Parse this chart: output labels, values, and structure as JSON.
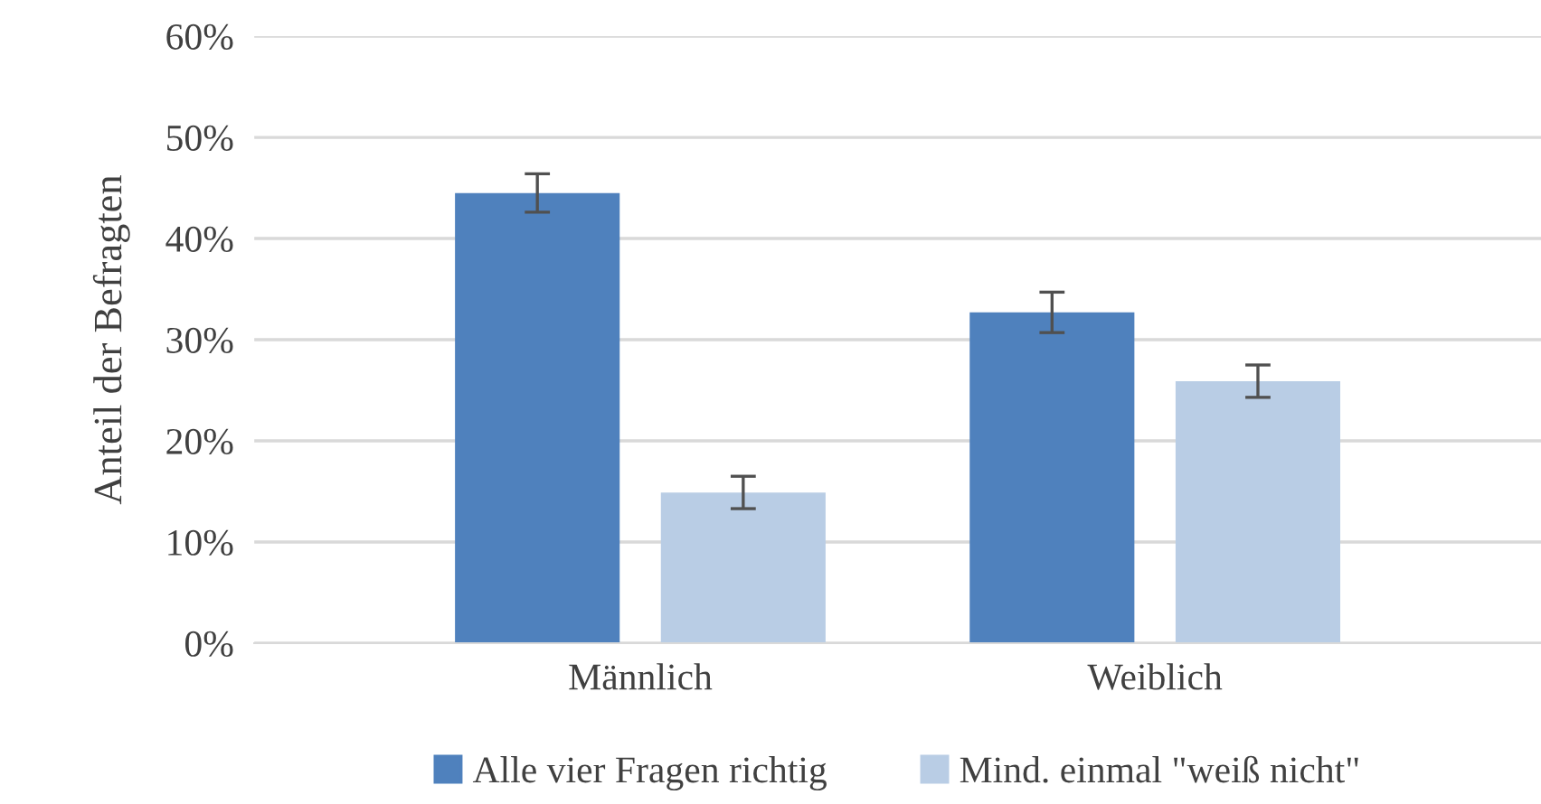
{
  "chart_data": {
    "type": "bar",
    "ylabel": "Anteil der Befragten",
    "categories": [
      "Männlich",
      "Weiblich"
    ],
    "series": [
      {
        "name": "Alle vier Fragen richtig",
        "color": "#4f81bd",
        "values": [
          44.5,
          32.7
        ],
        "errors": [
          1.9,
          2.0
        ]
      },
      {
        "name": "Mind. einmal \"weiß nicht\"",
        "color": "#b9cde5",
        "values": [
          14.9,
          25.9
        ],
        "errors": [
          1.6,
          1.6
        ]
      }
    ],
    "ylim": [
      0,
      60
    ],
    "yticks": [
      {
        "value": 0,
        "label": "0%"
      },
      {
        "value": 10,
        "label": "10%"
      },
      {
        "value": 20,
        "label": "20%"
      },
      {
        "value": 30,
        "label": "30%"
      },
      {
        "value": 40,
        "label": "40%"
      },
      {
        "value": 50,
        "label": "50%"
      },
      {
        "value": 60,
        "label": "60%"
      }
    ],
    "grid": "y",
    "legend": "bottom"
  }
}
